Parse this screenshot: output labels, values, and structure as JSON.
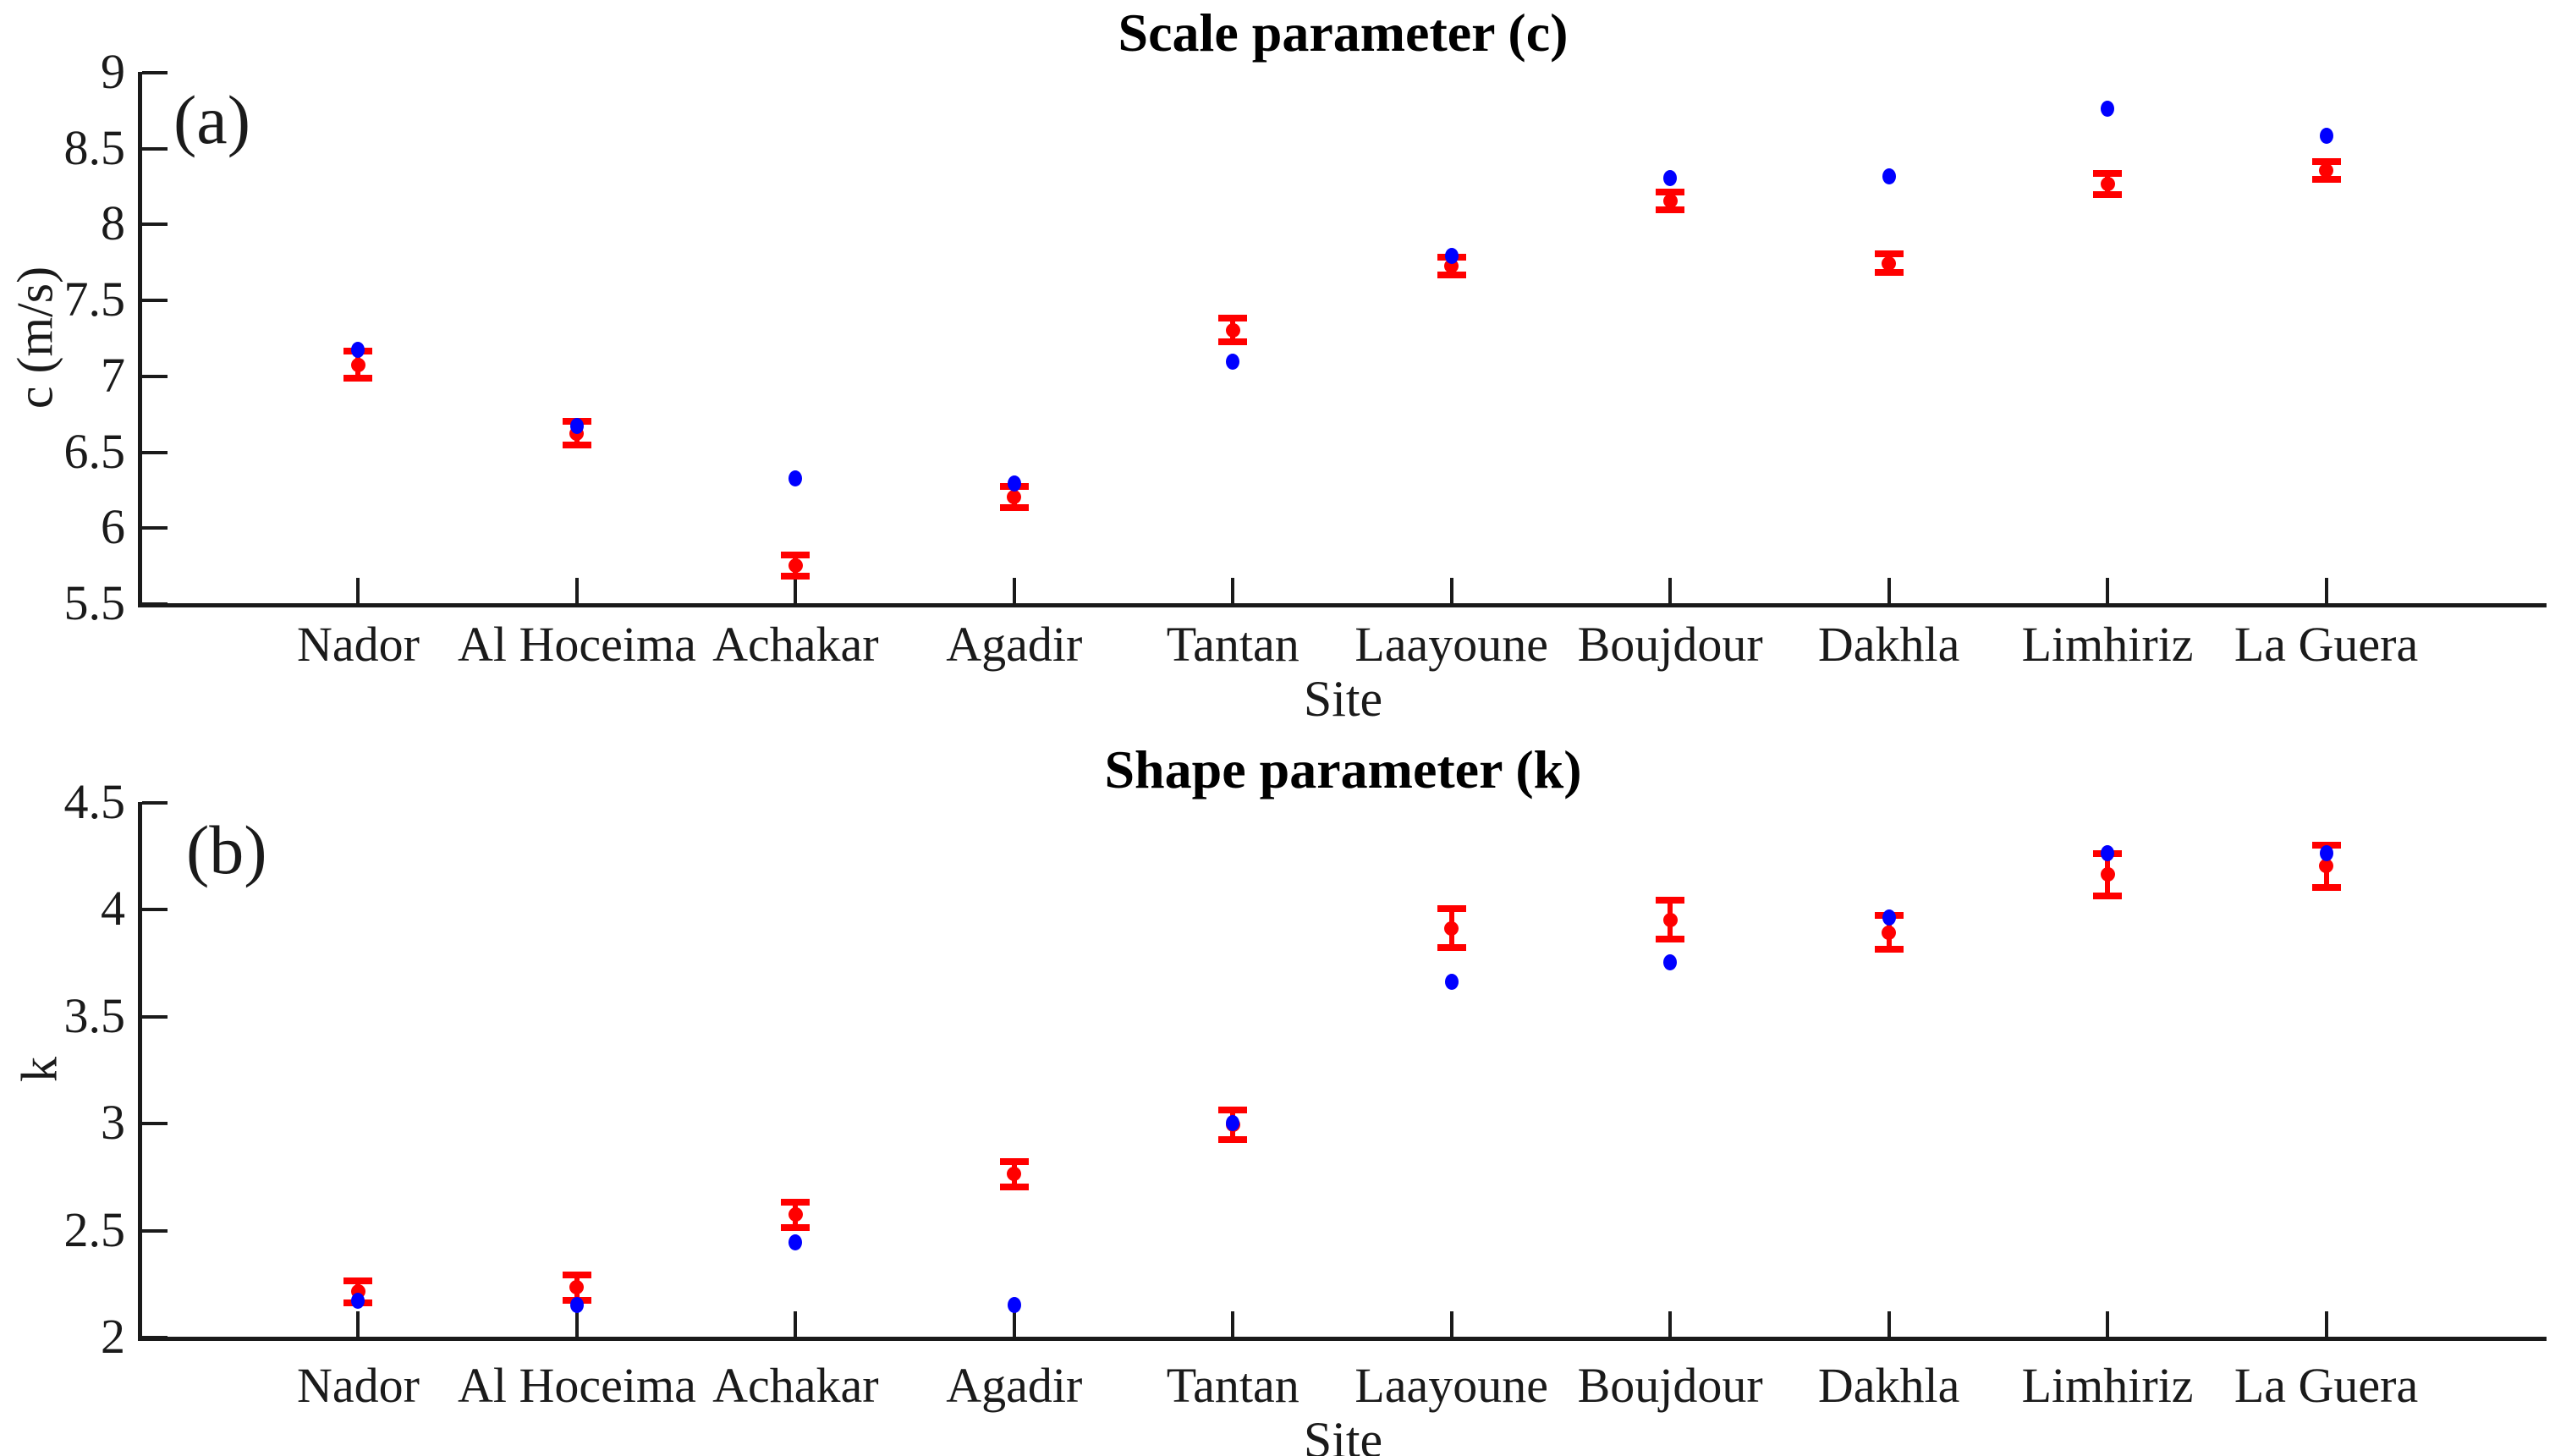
{
  "figure": {
    "background": "#ffffff",
    "axis_color": "#1a1a1a",
    "blue_marker_color": "#0000ff",
    "red_marker_color": "#ff0000"
  },
  "chart_data": [
    {
      "type": "scatter",
      "panel_label": "(a)",
      "title": "Scale parameter (c)",
      "xlabel": "Site",
      "ylabel": "c (m/s)",
      "ylim": [
        5.5,
        9
      ],
      "ytick_labels": [
        "5.5",
        "6",
        "6.5",
        "7",
        "7.5",
        "8",
        "8.5",
        "9"
      ],
      "yticks": [
        5.5,
        6,
        6.5,
        7,
        7.5,
        8,
        8.5,
        9
      ],
      "grid": false,
      "legend": "none",
      "categories": [
        "Nador",
        "Al Hoceima",
        "Achakar",
        "Agadir",
        "Tantan",
        "Laayoune",
        "Boujdour",
        "Dakhla",
        "Limhiriz",
        "La Guera"
      ],
      "series": [
        {
          "name": "blue-dots",
          "marker": "filled-circle",
          "color": "#0000ff",
          "values": [
            7.17,
            6.67,
            6.32,
            6.29,
            7.09,
            7.79,
            8.3,
            8.31,
            8.76,
            8.58
          ]
        },
        {
          "name": "red-dots-with-errorbars",
          "marker": "filled-circle-errorbar",
          "color": "#ff0000",
          "values": [
            7.07,
            6.62,
            5.75,
            6.2,
            7.3,
            7.72,
            8.15,
            7.74,
            8.26,
            8.35
          ],
          "errors": [
            0.09,
            0.08,
            0.07,
            0.07,
            0.08,
            0.06,
            0.06,
            0.06,
            0.07,
            0.06
          ]
        }
      ]
    },
    {
      "type": "scatter",
      "panel_label": "(b)",
      "title": "Shape parameter (k)",
      "xlabel": "Site",
      "ylabel": "k",
      "ylim": [
        2,
        4.5
      ],
      "ytick_labels": [
        "2",
        "2.5",
        "3",
        "3.5",
        "4",
        "4.5"
      ],
      "yticks": [
        2,
        2.5,
        3,
        3.5,
        4,
        4.5
      ],
      "grid": false,
      "legend": "none",
      "categories": [
        "Nador",
        "Al Hoceima",
        "Achakar",
        "Agadir",
        "Tantan",
        "Laayoune",
        "Boujdour",
        "Dakhla",
        "Limhiriz",
        "La Guera"
      ],
      "series": [
        {
          "name": "blue-dots",
          "marker": "filled-circle",
          "color": "#0000ff",
          "values": [
            2.17,
            2.15,
            2.44,
            2.15,
            3.0,
            3.66,
            3.75,
            3.96,
            4.26,
            4.26
          ]
        },
        {
          "name": "red-dots-with-errorbars",
          "marker": "filled-circle-errorbar",
          "color": "#ff0000",
          "values": [
            2.21,
            2.23,
            2.57,
            2.76,
            2.99,
            3.91,
            3.95,
            3.89,
            4.16,
            4.2
          ],
          "errors": [
            0.05,
            0.06,
            0.06,
            0.06,
            0.07,
            0.09,
            0.09,
            0.08,
            0.1,
            0.1
          ]
        }
      ]
    }
  ]
}
